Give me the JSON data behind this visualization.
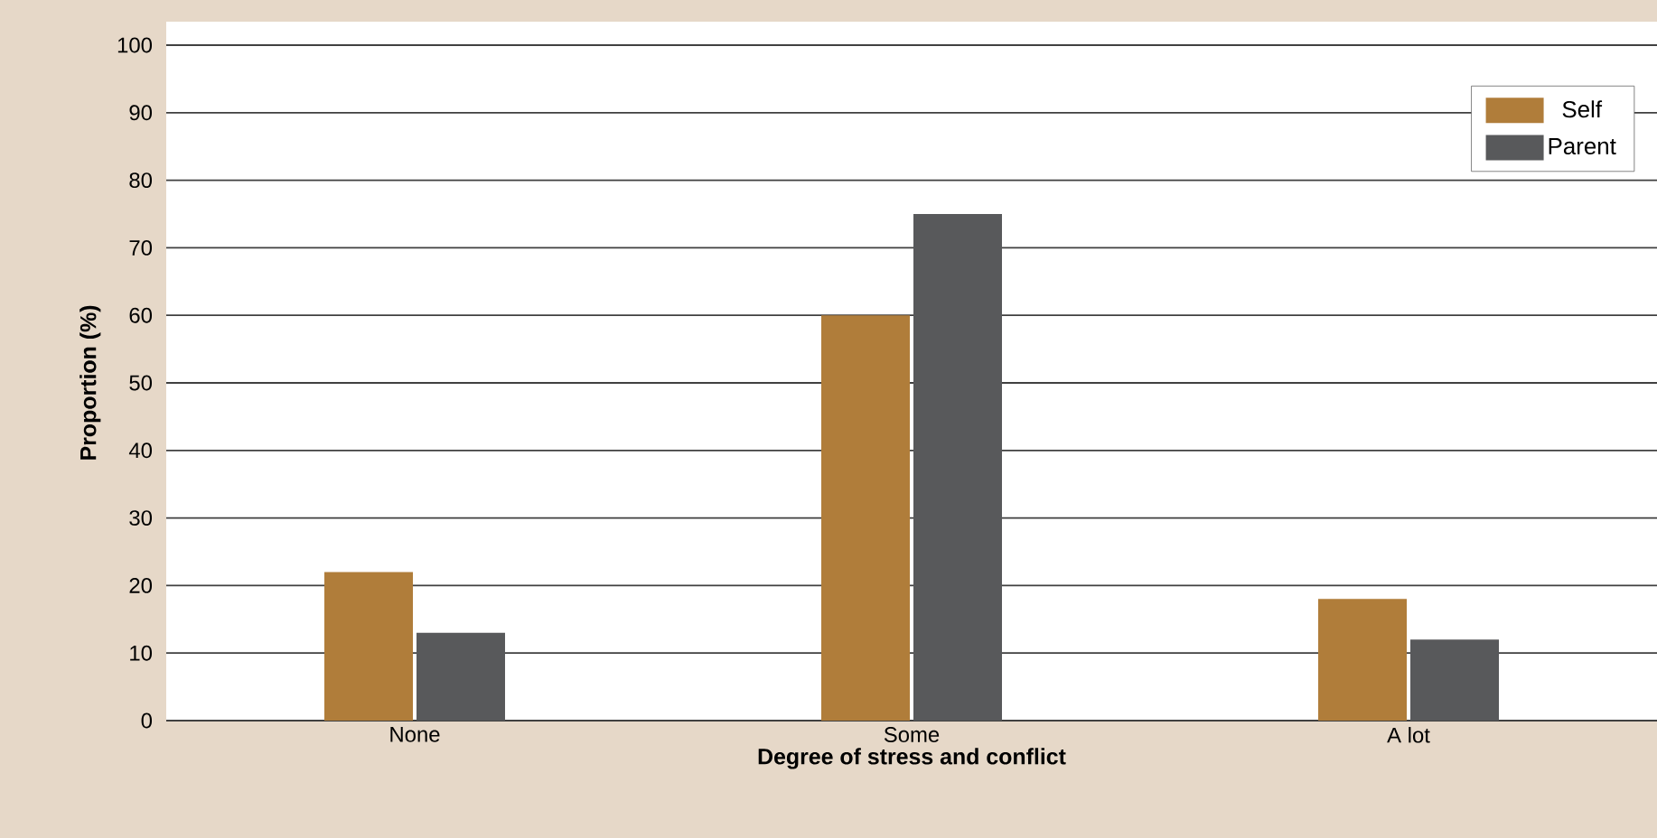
{
  "chart_data": {
    "type": "bar",
    "xlabel": "Degree of stress and conflict",
    "ylabel": "Proportion (%)",
    "categories": [
      "None",
      "Some",
      "A lot"
    ],
    "series": [
      {
        "name": "Self",
        "color": "#b07d3a",
        "values": [
          22,
          60,
          18
        ]
      },
      {
        "name": "Parent",
        "color": "#58595b",
        "values": [
          13,
          75,
          12
        ]
      }
    ],
    "ylim": [
      0,
      100
    ],
    "yticks": [
      0,
      10,
      20,
      30,
      40,
      50,
      60,
      70,
      80,
      90,
      100
    ],
    "grid": "y",
    "legend": "top right"
  }
}
